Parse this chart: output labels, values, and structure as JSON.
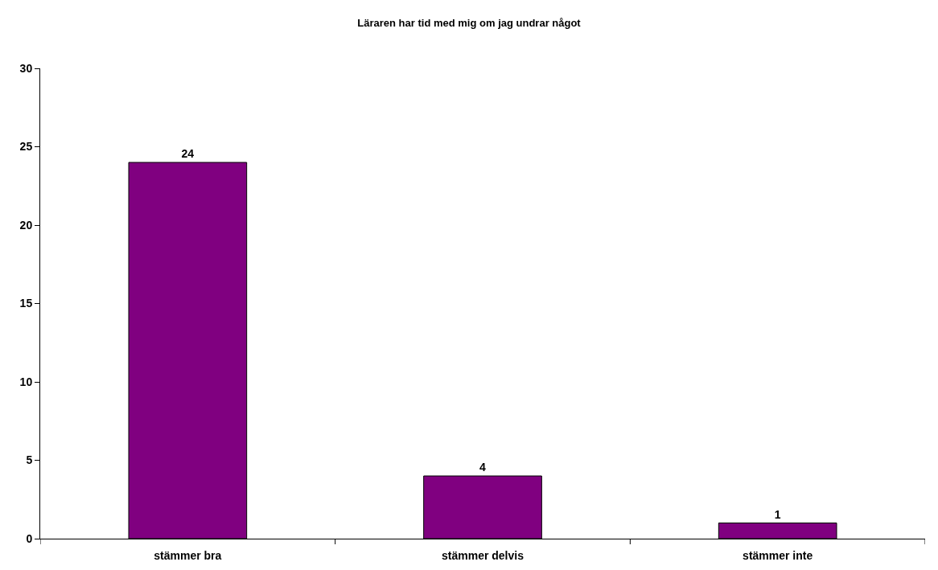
{
  "chart_data": {
    "type": "bar",
    "title": "Läraren har tid med mig om jag undrar något",
    "categories": [
      "stämmer bra",
      "stämmer delvis",
      "stämmer inte"
    ],
    "values": [
      24,
      4,
      1
    ],
    "color": "#800080",
    "ylim": [
      0,
      30
    ],
    "yticks": [
      0,
      5,
      10,
      15,
      20,
      25,
      30
    ],
    "data_labels": true
  }
}
